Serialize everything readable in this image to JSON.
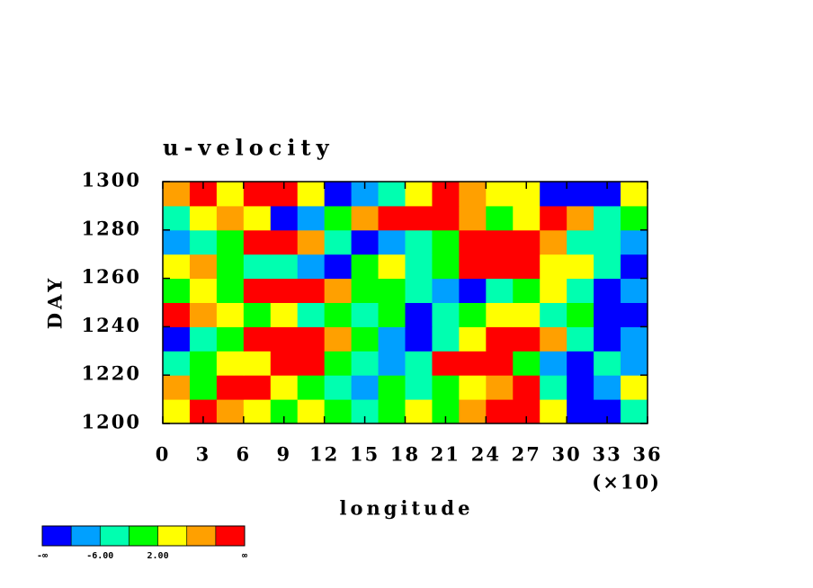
{
  "chart_data": {
    "type": "heatmap",
    "title": "u-velocity",
    "xlabel": "longitude",
    "ylabel": "DAY",
    "x_multiplier_label": "(×10)",
    "xlim": [
      0,
      36
    ],
    "ylim": [
      1200,
      1300
    ],
    "xticks": [
      0,
      3,
      6,
      9,
      12,
      15,
      18,
      21,
      24,
      27,
      30,
      33,
      36
    ],
    "yticks": [
      1200,
      1220,
      1240,
      1260,
      1280,
      1300
    ],
    "x_edges": [
      0,
      2,
      4,
      6,
      8,
      10,
      12,
      14,
      16,
      18,
      20,
      22,
      24,
      26,
      28,
      30,
      32,
      34,
      36
    ],
    "y_edges": [
      1200,
      1210,
      1220,
      1230,
      1240,
      1250,
      1260,
      1270,
      1280,
      1290,
      1300
    ],
    "z": [
      [
        4,
        12,
        8,
        4,
        0,
        4,
        0,
        -4,
        0,
        4,
        0,
        8,
        12,
        12,
        4,
        -12,
        -12,
        -4
      ],
      [
        8,
        0,
        12,
        12,
        4,
        0,
        -4,
        -8,
        0,
        -4,
        0,
        4,
        8,
        12,
        -4,
        -12,
        -8,
        4
      ],
      [
        -4,
        0,
        4,
        4,
        12,
        12,
        0,
        -4,
        -8,
        -4,
        12,
        12,
        12,
        0,
        -8,
        -12,
        -4,
        -8
      ],
      [
        -12,
        -4,
        0,
        12,
        12,
        12,
        8,
        0,
        -8,
        -12,
        -4,
        4,
        12,
        12,
        8,
        -4,
        -12,
        -8
      ],
      [
        12,
        8,
        4,
        0,
        4,
        -4,
        0,
        -4,
        0,
        -12,
        -4,
        0,
        4,
        4,
        -4,
        0,
        -12,
        -12
      ],
      [
        0,
        4,
        0,
        12,
        12,
        12,
        8,
        0,
        0,
        -4,
        -8,
        -12,
        -4,
        0,
        4,
        -4,
        -12,
        -8
      ],
      [
        4,
        8,
        0,
        -4,
        -4,
        -8,
        -12,
        0,
        4,
        -4,
        0,
        12,
        12,
        12,
        4,
        4,
        -4,
        -12
      ],
      [
        -8,
        -4,
        0,
        12,
        12,
        8,
        -4,
        -12,
        -8,
        -4,
        0,
        12,
        12,
        12,
        8,
        -4,
        -4,
        -8
      ],
      [
        -4,
        4,
        8,
        4,
        -12,
        -8,
        0,
        8,
        12,
        12,
        12,
        8,
        0,
        4,
        12,
        8,
        -4,
        0
      ],
      [
        8,
        12,
        4,
        12,
        12,
        4,
        -12,
        -8,
        -4,
        4,
        12,
        8,
        4,
        4,
        -12,
        -12,
        -12,
        4
      ]
    ],
    "levels": [
      -10,
      -6,
      -2,
      2,
      6,
      10
    ],
    "colors": [
      "#0000ff",
      "#00a0ff",
      "#00ffb0",
      "#00ff00",
      "#ffff00",
      "#ffa000",
      "#ff0000"
    ],
    "colorbar_ticks": [
      {
        "value": -6,
        "label": "-6.00"
      },
      {
        "value": 2,
        "label": "2.00"
      }
    ],
    "colorbar_end_labels": [
      "-∞",
      "∞"
    ]
  }
}
